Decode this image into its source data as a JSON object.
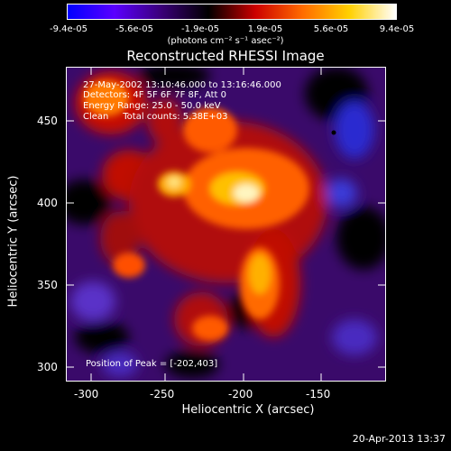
{
  "colorbar": {
    "ticks": [
      "-9.4e-05",
      "-5.6e-05",
      "-1.9e-05",
      "1.9e-05",
      "5.6e-05",
      "9.4e-05"
    ],
    "units_label": "(photons cm⁻² s⁻¹ asec⁻²)",
    "colors": [
      "#0000ff",
      "#5a00ff",
      "#3a0078",
      "#000000",
      "#cc0000",
      "#ff6a00",
      "#ffd000",
      "#ffffff"
    ]
  },
  "title": "Reconstructed RHESSI Image",
  "info": {
    "line1": "27-May-2002 13:10:46.000 to 13:16:46.000",
    "line2": "Detectors: 4F 5F 6F 7F 8F, Att 0",
    "line3": "Energy Range: 25.0 - 50.0 keV",
    "line4": "Clean     Total counts: 5.38E+03",
    "peak": "Position of Peak = [-202,403]"
  },
  "axes": {
    "xlabel": "Heliocentric X (arcsec)",
    "ylabel": "Heliocentric Y (arcsec)",
    "xticks": [
      "-300",
      "-250",
      "-200",
      "-150"
    ],
    "yticks": [
      "300",
      "350",
      "400",
      "450"
    ]
  },
  "footer": "20-Apr-2013 13:37"
}
